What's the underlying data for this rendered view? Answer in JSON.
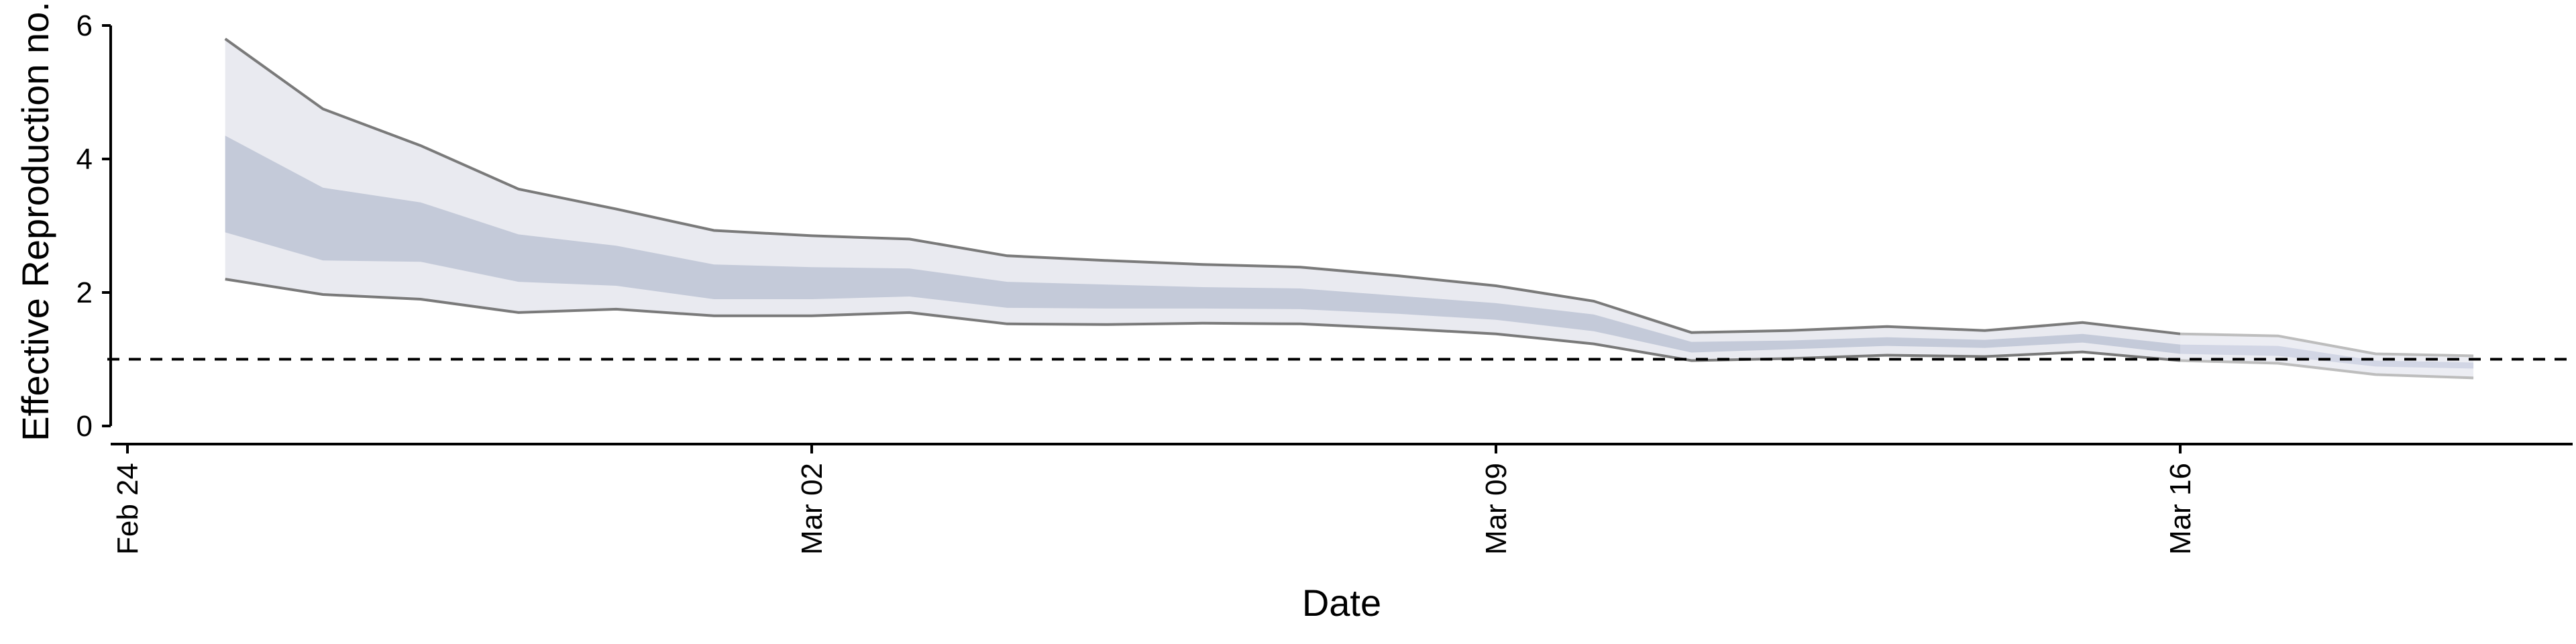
{
  "chart_data": {
    "type": "area",
    "title": "",
    "xlabel": "Date",
    "ylabel": "Effective Reproduction no.",
    "x_axis": {
      "ticks": [
        {
          "date": "2020-02-24",
          "label": "Feb 24"
        },
        {
          "date": "2020-03-02",
          "label": "Mar 02"
        },
        {
          "date": "2020-03-09",
          "label": "Mar 09"
        },
        {
          "date": "2020-03-16",
          "label": "Mar 16"
        }
      ],
      "range": [
        "2020-02-24",
        "2020-03-22"
      ]
    },
    "y_axis": {
      "ticks": [
        0,
        2,
        4,
        6
      ],
      "range": [
        0,
        6
      ]
    },
    "threshold": 1,
    "grid": false,
    "colors": {
      "outer_band": "#e9eaf0",
      "inner_band": "#c4cad9",
      "bound_line": "#7a7a7a",
      "fade_outer_band": "#ecedf3",
      "fade_inner_band": "#d2d6e5",
      "fade_bound_line": "#bdbdbd",
      "axis": "#000000",
      "threshold_line": "#000000"
    },
    "dates": [
      "2020-02-25",
      "2020-02-26",
      "2020-02-27",
      "2020-02-28",
      "2020-02-29",
      "2020-03-01",
      "2020-03-02",
      "2020-03-03",
      "2020-03-04",
      "2020-03-05",
      "2020-03-06",
      "2020-03-07",
      "2020-03-08",
      "2020-03-09",
      "2020-03-10",
      "2020-03-11",
      "2020-03-12",
      "2020-03-13",
      "2020-03-14",
      "2020-03-15",
      "2020-03-16",
      "2020-03-17",
      "2020-03-18",
      "2020-03-19"
    ],
    "series": [
      {
        "band": "outer",
        "bound": "upper",
        "values": [
          5.8,
          4.75,
          4.2,
          3.55,
          3.25,
          2.93,
          2.85,
          2.8,
          2.55,
          2.48,
          2.42,
          2.38,
          2.25,
          2.1,
          1.87,
          1.4,
          1.43,
          1.49,
          1.43,
          1.55,
          1.38,
          1.35,
          1.08,
          1.05
        ]
      },
      {
        "band": "inner",
        "bound": "upper",
        "values": [
          4.35,
          3.57,
          3.35,
          2.87,
          2.7,
          2.42,
          2.38,
          2.36,
          2.16,
          2.12,
          2.08,
          2.06,
          1.95,
          1.84,
          1.67,
          1.26,
          1.28,
          1.33,
          1.29,
          1.38,
          1.22,
          1.2,
          0.98,
          0.95
        ]
      },
      {
        "band": "inner",
        "bound": "lower",
        "values": [
          2.9,
          2.48,
          2.46,
          2.16,
          2.1,
          1.9,
          1.9,
          1.94,
          1.77,
          1.76,
          1.76,
          1.75,
          1.68,
          1.59,
          1.42,
          1.1,
          1.15,
          1.2,
          1.17,
          1.25,
          1.08,
          1.05,
          0.89,
          0.86
        ]
      },
      {
        "band": "outer",
        "bound": "lower",
        "values": [
          2.2,
          1.97,
          1.9,
          1.7,
          1.75,
          1.65,
          1.65,
          1.7,
          1.53,
          1.52,
          1.54,
          1.53,
          1.46,
          1.38,
          1.23,
          0.98,
          1.01,
          1.06,
          1.04,
          1.11,
          0.98,
          0.94,
          0.77,
          0.72
        ]
      }
    ],
    "faded_from_index": 20
  }
}
